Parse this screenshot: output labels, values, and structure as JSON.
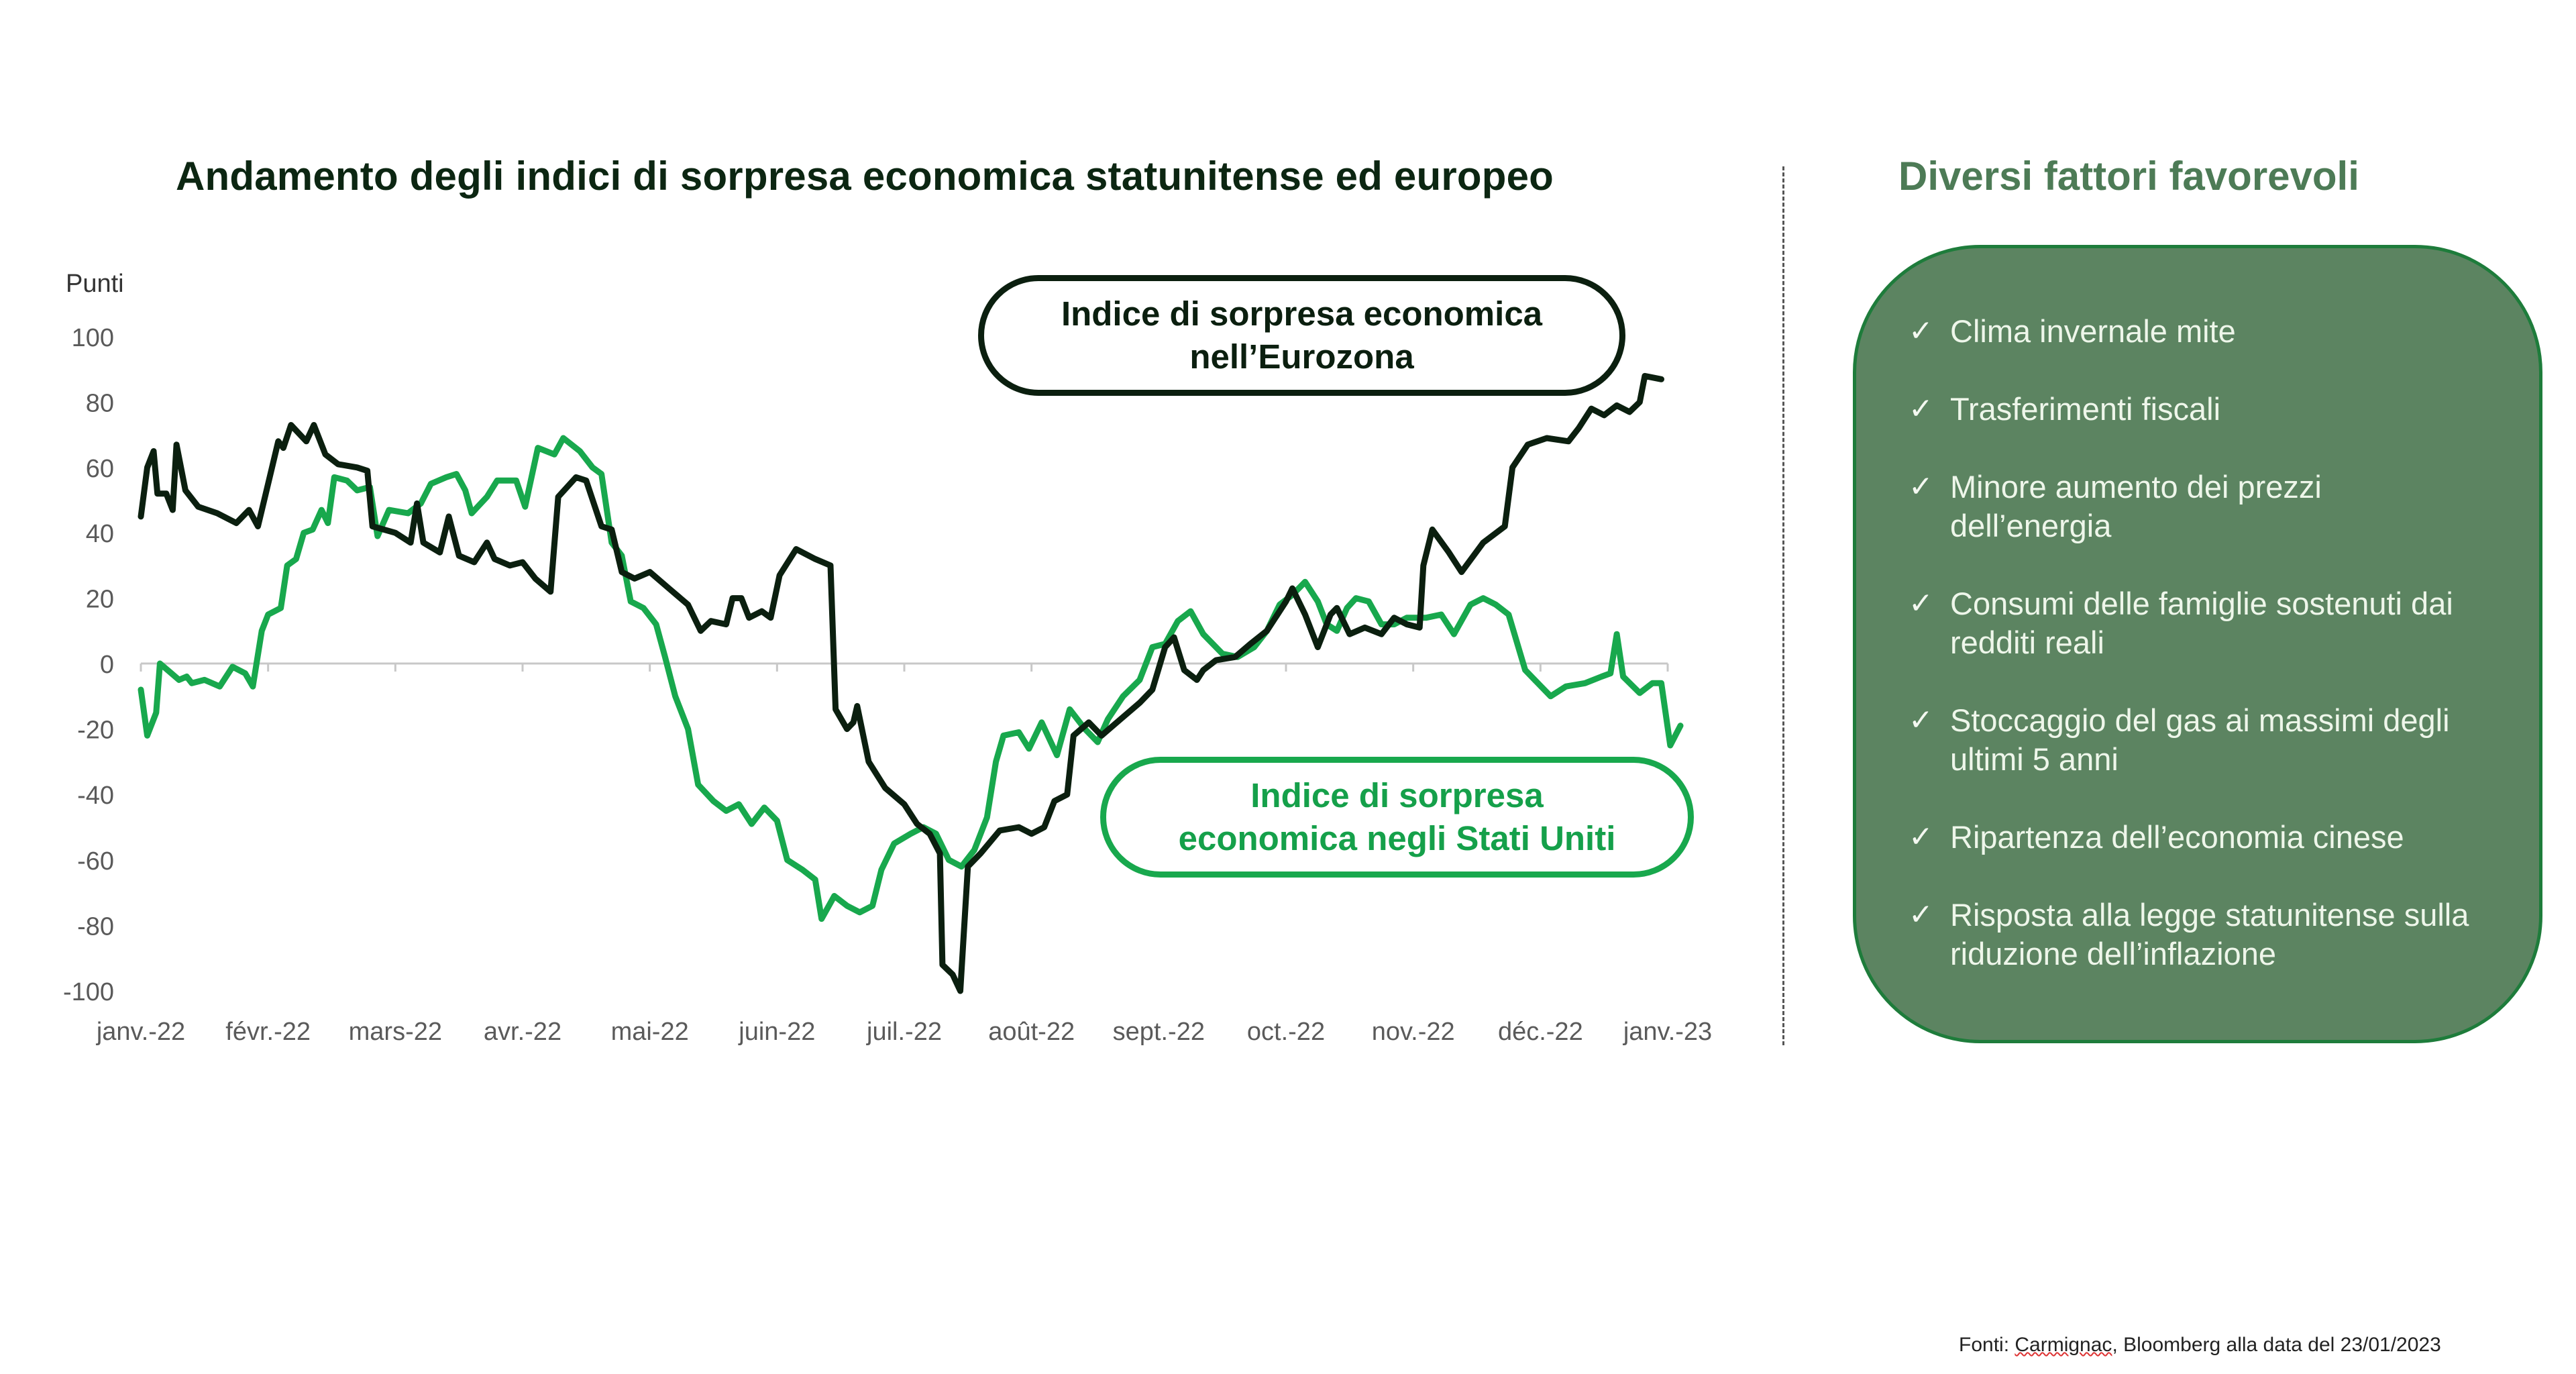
{
  "title": "Andamento degli indici di sorpresa economica statunitense ed europeo",
  "side_panel": {
    "title": "Diversi fattori favorevoli",
    "check_icon": "✓",
    "items": [
      "Clima invernale mite",
      "Trasferimenti fiscali",
      "Minore aumento dei prezzi dell’energia",
      "Consumi delle famiglie sostenuti dai redditi reali",
      "Stoccaggio del gas ai massimi degli ultimi 5 anni",
      "Ripartenza dell’economia cinese",
      "Risposta alla legge statunitense sulla riduzione dell’inflazione"
    ]
  },
  "source": {
    "prefix": "Fonti: ",
    "flagged": "Carmignac",
    "rest": ", Bloomberg alla data del 23/01/2023"
  },
  "colors": {
    "eurozone": "#0b1f0f",
    "us": "#18a84d",
    "panel_fill": "#5c8461",
    "panel_border": "#1e7c3b",
    "axis": "#c8c8c8",
    "tick_text": "#5a5a5a"
  },
  "chart_data": {
    "type": "line",
    "title": "Andamento degli indici di sorpresa economica statunitense ed europeo",
    "ylabel": "Punti",
    "xlabel": "",
    "ylim": [
      -100,
      100
    ],
    "yticks": [
      100,
      80,
      60,
      40,
      20,
      0,
      -20,
      -40,
      -60,
      -80,
      -100
    ],
    "x_unit": "months since janv.-22",
    "xlim": [
      0,
      12
    ],
    "xticks": [
      "janv.-22",
      "févr.-22",
      "mars-22",
      "avr.-22",
      "mai-22",
      "juin-22",
      "juil.-22",
      "août-22",
      "sept.-22",
      "oct.-22",
      "nov.-22",
      "déc.-22",
      "janv.-23"
    ],
    "grid": false,
    "zero_line": true,
    "legend": "inline-labels",
    "series": [
      {
        "name": "Indice di sorpresa economica nell’Eurozona",
        "color_key": "eurozone",
        "points": [
          [
            0.0,
            45
          ],
          [
            0.05,
            60
          ],
          [
            0.1,
            65
          ],
          [
            0.13,
            52
          ],
          [
            0.2,
            52
          ],
          [
            0.25,
            47
          ],
          [
            0.28,
            67
          ],
          [
            0.35,
            53
          ],
          [
            0.45,
            48
          ],
          [
            0.6,
            46
          ],
          [
            0.75,
            43
          ],
          [
            0.85,
            47
          ],
          [
            0.92,
            42
          ],
          [
            1.0,
            55
          ],
          [
            1.08,
            68
          ],
          [
            1.12,
            66
          ],
          [
            1.18,
            73
          ],
          [
            1.3,
            68
          ],
          [
            1.36,
            73
          ],
          [
            1.45,
            64
          ],
          [
            1.55,
            61
          ],
          [
            1.7,
            60
          ],
          [
            1.78,
            59
          ],
          [
            1.82,
            42
          ],
          [
            2.0,
            40
          ],
          [
            2.12,
            37
          ],
          [
            2.17,
            49
          ],
          [
            2.22,
            37
          ],
          [
            2.35,
            34
          ],
          [
            2.42,
            45
          ],
          [
            2.5,
            33
          ],
          [
            2.62,
            31
          ],
          [
            2.72,
            37
          ],
          [
            2.78,
            32
          ],
          [
            2.9,
            30
          ],
          [
            3.0,
            31
          ],
          [
            3.1,
            26
          ],
          [
            3.22,
            22
          ],
          [
            3.28,
            51
          ],
          [
            3.42,
            57
          ],
          [
            3.5,
            56
          ],
          [
            3.62,
            42
          ],
          [
            3.7,
            41
          ],
          [
            3.78,
            28
          ],
          [
            3.88,
            26
          ],
          [
            4.0,
            28
          ],
          [
            4.15,
            23
          ],
          [
            4.3,
            18
          ],
          [
            4.4,
            10
          ],
          [
            4.48,
            13
          ],
          [
            4.6,
            12
          ],
          [
            4.65,
            20
          ],
          [
            4.72,
            20
          ],
          [
            4.78,
            14
          ],
          [
            4.88,
            16
          ],
          [
            4.95,
            14
          ],
          [
            5.02,
            27
          ],
          [
            5.15,
            35
          ],
          [
            5.3,
            32
          ],
          [
            5.42,
            30
          ],
          [
            5.46,
            -14
          ],
          [
            5.55,
            -20
          ],
          [
            5.6,
            -18
          ],
          [
            5.63,
            -13
          ],
          [
            5.72,
            -30
          ],
          [
            5.85,
            -38
          ],
          [
            6.0,
            -43
          ],
          [
            6.1,
            -49
          ],
          [
            6.2,
            -52
          ],
          [
            6.28,
            -58
          ],
          [
            6.3,
            -92
          ],
          [
            6.38,
            -95
          ],
          [
            6.44,
            -100
          ],
          [
            6.5,
            -62
          ],
          [
            6.6,
            -58
          ],
          [
            6.75,
            -51
          ],
          [
            6.9,
            -50
          ],
          [
            7.0,
            -52
          ],
          [
            7.1,
            -50
          ],
          [
            7.18,
            -42
          ],
          [
            7.28,
            -40
          ],
          [
            7.33,
            -22
          ],
          [
            7.45,
            -18
          ],
          [
            7.55,
            -22
          ],
          [
            7.7,
            -17
          ],
          [
            7.85,
            -12
          ],
          [
            7.95,
            -8
          ],
          [
            8.05,
            5
          ],
          [
            8.12,
            8
          ],
          [
            8.2,
            -2
          ],
          [
            8.3,
            -5
          ],
          [
            8.35,
            -2
          ],
          [
            8.45,
            1
          ],
          [
            8.6,
            2
          ],
          [
            8.72,
            6
          ],
          [
            8.85,
            10
          ],
          [
            9.0,
            19
          ],
          [
            9.05,
            23
          ],
          [
            9.15,
            15
          ],
          [
            9.25,
            5
          ],
          [
            9.35,
            15
          ],
          [
            9.4,
            17
          ],
          [
            9.5,
            9
          ],
          [
            9.62,
            11
          ],
          [
            9.75,
            9
          ],
          [
            9.85,
            14
          ],
          [
            9.95,
            12
          ],
          [
            10.05,
            11
          ],
          [
            10.08,
            30
          ],
          [
            10.15,
            41
          ],
          [
            10.28,
            34
          ],
          [
            10.38,
            28
          ],
          [
            10.55,
            37
          ],
          [
            10.72,
            42
          ],
          [
            10.78,
            60
          ],
          [
            10.9,
            67
          ],
          [
            11.05,
            69
          ],
          [
            11.22,
            68
          ],
          [
            11.3,
            72
          ],
          [
            11.4,
            78
          ],
          [
            11.5,
            76
          ],
          [
            11.6,
            79
          ],
          [
            11.7,
            77
          ],
          [
            11.78,
            80
          ],
          [
            11.82,
            88
          ],
          [
            11.95,
            87
          ]
        ]
      },
      {
        "name": "Indice di sorpresa economica negli Stati Uniti",
        "color_key": "us",
        "points": [
          [
            0.0,
            -8
          ],
          [
            0.05,
            -22
          ],
          [
            0.12,
            -15
          ],
          [
            0.15,
            0
          ],
          [
            0.3,
            -5
          ],
          [
            0.36,
            -4
          ],
          [
            0.4,
            -6
          ],
          [
            0.5,
            -5
          ],
          [
            0.62,
            -7
          ],
          [
            0.72,
            -1
          ],
          [
            0.82,
            -3
          ],
          [
            0.88,
            -7
          ],
          [
            0.95,
            10
          ],
          [
            1.0,
            15
          ],
          [
            1.1,
            17
          ],
          [
            1.15,
            30
          ],
          [
            1.22,
            32
          ],
          [
            1.28,
            40
          ],
          [
            1.35,
            41
          ],
          [
            1.42,
            47
          ],
          [
            1.47,
            43
          ],
          [
            1.52,
            57
          ],
          [
            1.62,
            56
          ],
          [
            1.7,
            53
          ],
          [
            1.8,
            54
          ],
          [
            1.86,
            39
          ],
          [
            1.95,
            47
          ],
          [
            2.1,
            46
          ],
          [
            2.2,
            49
          ],
          [
            2.28,
            55
          ],
          [
            2.4,
            57
          ],
          [
            2.48,
            58
          ],
          [
            2.55,
            53
          ],
          [
            2.6,
            46
          ],
          [
            2.72,
            51
          ],
          [
            2.8,
            56
          ],
          [
            2.95,
            56
          ],
          [
            3.02,
            48
          ],
          [
            3.12,
            66
          ],
          [
            3.25,
            64
          ],
          [
            3.32,
            69
          ],
          [
            3.45,
            65
          ],
          [
            3.55,
            60
          ],
          [
            3.62,
            58
          ],
          [
            3.7,
            37
          ],
          [
            3.78,
            33
          ],
          [
            3.85,
            19
          ],
          [
            3.95,
            17
          ],
          [
            4.05,
            12
          ],
          [
            4.12,
            2
          ],
          [
            4.2,
            -10
          ],
          [
            4.3,
            -20
          ],
          [
            4.38,
            -37
          ],
          [
            4.5,
            -42
          ],
          [
            4.6,
            -45
          ],
          [
            4.7,
            -43
          ],
          [
            4.8,
            -49
          ],
          [
            4.9,
            -44
          ],
          [
            5.0,
            -48
          ],
          [
            5.08,
            -60
          ],
          [
            5.2,
            -63
          ],
          [
            5.3,
            -66
          ],
          [
            5.35,
            -78
          ],
          [
            5.45,
            -71
          ],
          [
            5.55,
            -74
          ],
          [
            5.65,
            -76
          ],
          [
            5.75,
            -74
          ],
          [
            5.82,
            -63
          ],
          [
            5.92,
            -55
          ],
          [
            6.05,
            -52
          ],
          [
            6.15,
            -50
          ],
          [
            6.25,
            -52
          ],
          [
            6.35,
            -60
          ],
          [
            6.45,
            -62
          ],
          [
            6.55,
            -57
          ],
          [
            6.65,
            -47
          ],
          [
            6.72,
            -30
          ],
          [
            6.78,
            -22
          ],
          [
            6.9,
            -21
          ],
          [
            6.98,
            -26
          ],
          [
            7.08,
            -18
          ],
          [
            7.2,
            -28
          ],
          [
            7.3,
            -14
          ],
          [
            7.42,
            -20
          ],
          [
            7.52,
            -24
          ],
          [
            7.6,
            -17
          ],
          [
            7.72,
            -10
          ],
          [
            7.85,
            -5
          ],
          [
            7.95,
            5
          ],
          [
            8.05,
            6
          ],
          [
            8.15,
            13
          ],
          [
            8.25,
            16
          ],
          [
            8.35,
            9
          ],
          [
            8.5,
            3
          ],
          [
            8.62,
            2
          ],
          [
            8.75,
            5
          ],
          [
            8.85,
            10
          ],
          [
            8.95,
            18
          ],
          [
            9.05,
            21
          ],
          [
            9.15,
            25
          ],
          [
            9.25,
            19
          ],
          [
            9.32,
            12
          ],
          [
            9.4,
            10
          ],
          [
            9.48,
            17
          ],
          [
            9.55,
            20
          ],
          [
            9.65,
            19
          ],
          [
            9.75,
            12
          ],
          [
            9.85,
            12
          ],
          [
            9.95,
            14
          ],
          [
            10.1,
            14
          ],
          [
            10.22,
            15
          ],
          [
            10.32,
            9
          ],
          [
            10.45,
            18
          ],
          [
            10.55,
            20
          ],
          [
            10.65,
            18
          ],
          [
            10.75,
            15
          ],
          [
            10.88,
            -2
          ],
          [
            10.98,
            -6
          ],
          [
            11.08,
            -10
          ],
          [
            11.2,
            -7
          ],
          [
            11.35,
            -6
          ],
          [
            11.48,
            -4
          ],
          [
            11.55,
            -3
          ],
          [
            11.6,
            9
          ],
          [
            11.65,
            -4
          ],
          [
            11.78,
            -9
          ],
          [
            11.88,
            -6
          ],
          [
            11.95,
            -6
          ],
          [
            12.02,
            -25
          ],
          [
            12.1,
            -19
          ]
        ]
      }
    ],
    "annotations": [
      {
        "text": "Indice di sorpresa economica nell’Eurozona",
        "series": "eurozone",
        "placement": "top-right"
      },
      {
        "text": "Indice di sorpresa economica negli Stati Uniti",
        "series": "us",
        "placement": "bottom-right"
      }
    ]
  },
  "legend": {
    "eurozone_line1": "Indice di sorpresa economica",
    "eurozone_line2": "nell’Eurozona",
    "us_line1": "Indice di sorpresa",
    "us_line2": "economica negli Stati Uniti"
  }
}
